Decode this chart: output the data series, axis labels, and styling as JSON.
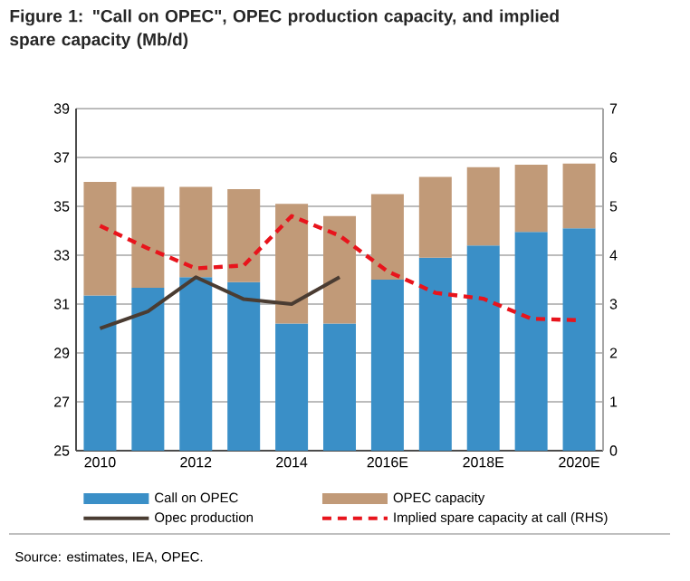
{
  "chart_data": {
    "type": "bar",
    "title": "Figure 1: \"Call on OPEC\", OPEC production capacity, and implied spare capacity (Mb/d)",
    "categories": [
      "2010",
      null,
      "2012",
      null,
      "2014",
      null,
      "2016E",
      null,
      "2018E",
      null,
      "2020E"
    ],
    "stacked": true,
    "series": [
      {
        "name": "Call on OPEC",
        "type": "bar",
        "color": "#3a8fc7",
        "values": [
          31.35,
          31.67,
          32.1,
          31.9,
          30.2,
          30.2,
          32.0,
          32.9,
          33.4,
          33.95,
          34.1
        ]
      },
      {
        "name": "OPEC capacity",
        "type": "bar",
        "color": "#c19a78",
        "base": [
          31.35,
          31.67,
          32.1,
          31.9,
          30.2,
          30.2,
          32.0,
          32.9,
          33.4,
          33.95,
          34.1
        ],
        "values": [
          4.65,
          4.13,
          3.7,
          3.8,
          4.9,
          4.4,
          3.5,
          3.3,
          3.2,
          2.75,
          2.65
        ]
      },
      {
        "name": "Opec production",
        "type": "line",
        "color": "#4a3c32",
        "values": [
          30.0,
          30.7,
          32.1,
          31.2,
          31.0,
          32.1,
          null,
          null,
          null,
          null,
          null
        ]
      },
      {
        "name": "Implied spare capacity at call (RHS)",
        "type": "line",
        "axis": "y2",
        "line_style": "dashed",
        "color": "#e8141c",
        "values": [
          4.6,
          4.14,
          3.73,
          3.79,
          4.8,
          4.4,
          3.67,
          3.23,
          3.11,
          2.7,
          2.67
        ]
      }
    ],
    "ylim": [
      25,
      39
    ],
    "yticks": [
      25,
      27,
      29,
      31,
      33,
      35,
      37,
      39
    ],
    "y2lim": [
      0,
      7
    ],
    "y2ticks": [
      0,
      1,
      2,
      3,
      4,
      5,
      6,
      7
    ],
    "grid": "y",
    "legend": "bottom",
    "marker": "none",
    "annotations": [
      "Source:  estimates, IEA, OPEC."
    ]
  }
}
